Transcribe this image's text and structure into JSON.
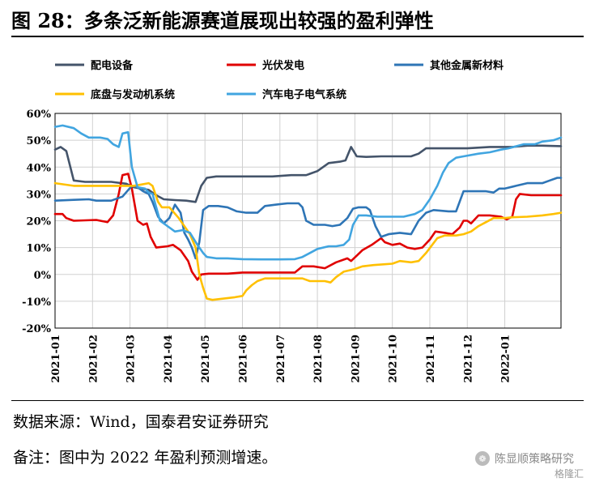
{
  "title": "图 28：多条泛新能源赛道展现出较强的盈利弹性",
  "source": "数据来源：Wind，国泰君安证券研究",
  "note": "备注：图中为 2022 年盈利预测增速。",
  "watermark": "陈显顺策略研究",
  "watermark_sub": "格隆汇",
  "colors": {
    "配电设备": "#44546A",
    "光伏发电": "#E00000",
    "其他金属新材料": "#2E75B6",
    "底盘与发动机系统": "#FFC000",
    "汽车电子电气系统": "#41A5E0"
  },
  "chart_data": {
    "type": "line",
    "y_unit": "%",
    "ylim": [
      -20,
      60
    ],
    "y_ticks": [
      "60%",
      "50%",
      "40%",
      "30%",
      "20%",
      "10%",
      "0%",
      "-10%",
      "-20%"
    ],
    "x_range": [
      0,
      13.5
    ],
    "categories": [
      "2021-01",
      "2021-02",
      "2021-03",
      "2021-04",
      "2021-05",
      "2021-06",
      "2021-07",
      "2021-08",
      "2021-09",
      "2021-10",
      "2021-11",
      "2021-12",
      "2022-01"
    ],
    "grid": true,
    "legend_position": "top",
    "series": [
      {
        "name": "配电设备",
        "points": [
          [
            0,
            46.5
          ],
          [
            0.15,
            47.5
          ],
          [
            0.3,
            46
          ],
          [
            0.5,
            35
          ],
          [
            0.8,
            34.5
          ],
          [
            1.5,
            34.5
          ],
          [
            1.9,
            33.8
          ],
          [
            2.1,
            32.5
          ],
          [
            2.3,
            32
          ],
          [
            2.5,
            31.5
          ],
          [
            2.7,
            29.5
          ],
          [
            2.9,
            28
          ],
          [
            3.2,
            27.7
          ],
          [
            3.5,
            27.5
          ],
          [
            3.75,
            27
          ],
          [
            3.9,
            33
          ],
          [
            4.05,
            36
          ],
          [
            4.3,
            36.5
          ],
          [
            5,
            36.5
          ],
          [
            5.8,
            36.5
          ],
          [
            6.3,
            37
          ],
          [
            6.7,
            37
          ],
          [
            7,
            38.5
          ],
          [
            7.3,
            41.5
          ],
          [
            7.6,
            42
          ],
          [
            7.75,
            42.5
          ],
          [
            7.9,
            47.5
          ],
          [
            8.05,
            44
          ],
          [
            8.3,
            43.8
          ],
          [
            8.7,
            44
          ],
          [
            9.2,
            44
          ],
          [
            9.5,
            44
          ],
          [
            9.7,
            45
          ],
          [
            9.9,
            47
          ],
          [
            10.3,
            47
          ],
          [
            11,
            47
          ],
          [
            11.6,
            47.5
          ],
          [
            12.2,
            47.5
          ],
          [
            12.6,
            48
          ],
          [
            13,
            48
          ],
          [
            13.5,
            47.8
          ]
        ]
      },
      {
        "name": "光伏发电",
        "points": [
          [
            0,
            22.5
          ],
          [
            0.2,
            22.5
          ],
          [
            0.3,
            21
          ],
          [
            0.5,
            20
          ],
          [
            1.1,
            20.3
          ],
          [
            1.4,
            19.5
          ],
          [
            1.55,
            22
          ],
          [
            1.7,
            30
          ],
          [
            1.8,
            37
          ],
          [
            1.95,
            37.5
          ],
          [
            2.05,
            32
          ],
          [
            2.2,
            20
          ],
          [
            2.35,
            18.5
          ],
          [
            2.45,
            19
          ],
          [
            2.55,
            14
          ],
          [
            2.7,
            10
          ],
          [
            3,
            10.5
          ],
          [
            3.15,
            11
          ],
          [
            3.35,
            9
          ],
          [
            3.55,
            5
          ],
          [
            3.65,
            1
          ],
          [
            3.8,
            -2
          ],
          [
            3.9,
            0
          ],
          [
            4.1,
            0.3
          ],
          [
            4.6,
            0.3
          ],
          [
            5,
            0.7
          ],
          [
            5.5,
            0.7
          ],
          [
            6,
            0.7
          ],
          [
            6.4,
            0.7
          ],
          [
            6.6,
            3
          ],
          [
            6.9,
            3
          ],
          [
            7.2,
            2.3
          ],
          [
            7.5,
            4.5
          ],
          [
            7.8,
            6
          ],
          [
            7.9,
            5
          ],
          [
            8.05,
            7
          ],
          [
            8.2,
            9
          ],
          [
            8.45,
            11
          ],
          [
            8.7,
            13.5
          ],
          [
            8.8,
            12
          ],
          [
            9,
            11
          ],
          [
            9.2,
            11.5
          ],
          [
            9.4,
            10
          ],
          [
            9.6,
            9.5
          ],
          [
            9.8,
            10
          ],
          [
            10,
            13
          ],
          [
            10.15,
            16
          ],
          [
            10.4,
            15.5
          ],
          [
            10.6,
            15
          ],
          [
            10.8,
            17.5
          ],
          [
            10.9,
            20
          ],
          [
            11,
            20
          ],
          [
            11.1,
            19
          ],
          [
            11.3,
            22
          ],
          [
            11.6,
            22
          ],
          [
            11.9,
            21.5
          ],
          [
            12.05,
            20.5
          ],
          [
            12.2,
            21.5
          ],
          [
            12.3,
            28
          ],
          [
            12.4,
            30
          ],
          [
            12.7,
            29.5
          ],
          [
            13,
            29.5
          ],
          [
            13.5,
            29.5
          ]
        ]
      },
      {
        "name": "其他金属新材料",
        "points": [
          [
            0,
            27.5
          ],
          [
            0.5,
            27.8
          ],
          [
            0.9,
            28
          ],
          [
            1.1,
            27.5
          ],
          [
            1.5,
            27.5
          ],
          [
            1.8,
            29
          ],
          [
            2.05,
            33
          ],
          [
            2.2,
            32.5
          ],
          [
            2.35,
            31
          ],
          [
            2.5,
            30
          ],
          [
            2.6,
            27
          ],
          [
            2.75,
            21.5
          ],
          [
            2.9,
            19
          ],
          [
            3.05,
            21
          ],
          [
            3.2,
            26
          ],
          [
            3.35,
            23
          ],
          [
            3.45,
            15.5
          ],
          [
            3.55,
            13
          ],
          [
            3.65,
            10
          ],
          [
            3.75,
            6
          ],
          [
            3.85,
            12
          ],
          [
            3.95,
            24
          ],
          [
            4.1,
            25.5
          ],
          [
            4.35,
            25.5
          ],
          [
            4.6,
            25
          ],
          [
            4.85,
            23.5
          ],
          [
            5.1,
            23
          ],
          [
            5.4,
            23
          ],
          [
            5.6,
            25.5
          ],
          [
            5.9,
            26
          ],
          [
            6.2,
            26.5
          ],
          [
            6.5,
            26.5
          ],
          [
            6.6,
            25
          ],
          [
            6.7,
            20
          ],
          [
            6.9,
            18.5
          ],
          [
            7.2,
            18.5
          ],
          [
            7.4,
            18
          ],
          [
            7.6,
            18.5
          ],
          [
            7.8,
            21
          ],
          [
            7.95,
            24.5
          ],
          [
            8.1,
            25
          ],
          [
            8.3,
            25
          ],
          [
            8.4,
            24
          ],
          [
            8.55,
            18
          ],
          [
            8.7,
            14
          ],
          [
            8.9,
            15
          ],
          [
            9.2,
            15.5
          ],
          [
            9.5,
            15
          ],
          [
            9.7,
            20
          ],
          [
            9.9,
            23
          ],
          [
            10.1,
            24
          ],
          [
            10.5,
            23.5
          ],
          [
            10.7,
            23.5
          ],
          [
            10.9,
            31
          ],
          [
            11.1,
            31
          ],
          [
            11.5,
            31
          ],
          [
            11.7,
            30.5
          ],
          [
            11.85,
            32
          ],
          [
            12,
            32
          ],
          [
            12.3,
            33
          ],
          [
            12.6,
            34
          ],
          [
            12.8,
            34
          ],
          [
            13,
            34
          ],
          [
            13.2,
            35
          ],
          [
            13.4,
            36
          ],
          [
            13.5,
            36
          ]
        ]
      },
      {
        "name": "底盘与发动机系统",
        "points": [
          [
            0,
            34
          ],
          [
            0.5,
            33
          ],
          [
            1,
            33
          ],
          [
            1.5,
            33
          ],
          [
            1.8,
            33
          ],
          [
            2.1,
            33
          ],
          [
            2.3,
            33.5
          ],
          [
            2.5,
            34
          ],
          [
            2.6,
            33
          ],
          [
            2.75,
            27
          ],
          [
            2.85,
            25
          ],
          [
            3.05,
            25
          ],
          [
            3.3,
            21
          ],
          [
            3.45,
            18
          ],
          [
            3.6,
            15
          ],
          [
            3.75,
            10
          ],
          [
            3.85,
            0
          ],
          [
            3.95,
            -5
          ],
          [
            4.05,
            -9
          ],
          [
            4.2,
            -9.5
          ],
          [
            4.5,
            -9
          ],
          [
            4.8,
            -8.5
          ],
          [
            5,
            -8
          ],
          [
            5.1,
            -6
          ],
          [
            5.25,
            -4
          ],
          [
            5.4,
            -2.5
          ],
          [
            5.6,
            -1.5
          ],
          [
            6,
            -1.5
          ],
          [
            6.4,
            -1.5
          ],
          [
            6.6,
            -1.5
          ],
          [
            6.8,
            -2.5
          ],
          [
            7,
            -2.5
          ],
          [
            7.2,
            -2.5
          ],
          [
            7.35,
            -3
          ],
          [
            7.5,
            -1
          ],
          [
            7.7,
            1
          ],
          [
            8,
            2
          ],
          [
            8.2,
            3
          ],
          [
            8.5,
            3.5
          ],
          [
            8.8,
            3.8
          ],
          [
            9,
            4
          ],
          [
            9.2,
            5
          ],
          [
            9.5,
            4.5
          ],
          [
            9.7,
            5
          ],
          [
            9.9,
            8
          ],
          [
            10.2,
            13.5
          ],
          [
            10.4,
            14.5
          ],
          [
            10.7,
            14.5
          ],
          [
            10.9,
            15
          ],
          [
            11.1,
            16
          ],
          [
            11.3,
            18
          ],
          [
            11.5,
            19.5
          ],
          [
            11.7,
            21
          ],
          [
            12,
            21
          ],
          [
            12.2,
            21.3
          ],
          [
            12.6,
            21.5
          ],
          [
            13,
            22
          ],
          [
            13.3,
            22.5
          ],
          [
            13.5,
            23
          ]
        ]
      },
      {
        "name": "汽车电子电气系统",
        "points": [
          [
            0,
            55
          ],
          [
            0.2,
            55.5
          ],
          [
            0.5,
            54.5
          ],
          [
            0.7,
            52.5
          ],
          [
            0.9,
            51
          ],
          [
            1.2,
            51
          ],
          [
            1.4,
            50.5
          ],
          [
            1.55,
            48.5
          ],
          [
            1.7,
            47.5
          ],
          [
            1.8,
            52.5
          ],
          [
            1.95,
            53
          ],
          [
            2.05,
            40
          ],
          [
            2.2,
            32.5
          ],
          [
            2.4,
            32
          ],
          [
            2.5,
            30.5
          ],
          [
            2.6,
            30
          ],
          [
            2.7,
            25
          ],
          [
            2.8,
            20
          ],
          [
            2.95,
            18.5
          ],
          [
            3.2,
            16
          ],
          [
            3.4,
            16.5
          ],
          [
            3.6,
            15.5
          ],
          [
            3.8,
            11
          ],
          [
            3.95,
            8
          ],
          [
            4.05,
            6.5
          ],
          [
            4.3,
            6
          ],
          [
            4.6,
            6
          ],
          [
            5,
            5.7
          ],
          [
            5.5,
            5.6
          ],
          [
            6,
            5.6
          ],
          [
            6.4,
            5.7
          ],
          [
            6.6,
            6.5
          ],
          [
            6.8,
            8
          ],
          [
            7,
            9.5
          ],
          [
            7.3,
            10.5
          ],
          [
            7.5,
            10.5
          ],
          [
            7.7,
            11
          ],
          [
            7.85,
            13
          ],
          [
            7.95,
            18.5
          ],
          [
            8.1,
            22
          ],
          [
            8.3,
            22
          ],
          [
            8.6,
            21.5
          ],
          [
            9,
            21.5
          ],
          [
            9.3,
            21.5
          ],
          [
            9.6,
            22.5
          ],
          [
            9.8,
            24
          ],
          [
            10,
            28
          ],
          [
            10.2,
            33
          ],
          [
            10.35,
            38
          ],
          [
            10.5,
            41.5
          ],
          [
            10.7,
            43.5
          ],
          [
            10.9,
            44
          ],
          [
            11.3,
            45
          ],
          [
            11.6,
            45.5
          ],
          [
            11.9,
            46.5
          ],
          [
            12.1,
            47
          ],
          [
            12.5,
            48.5
          ],
          [
            12.8,
            48.5
          ],
          [
            13,
            49.5
          ],
          [
            13.3,
            50
          ],
          [
            13.5,
            51
          ]
        ]
      }
    ]
  }
}
